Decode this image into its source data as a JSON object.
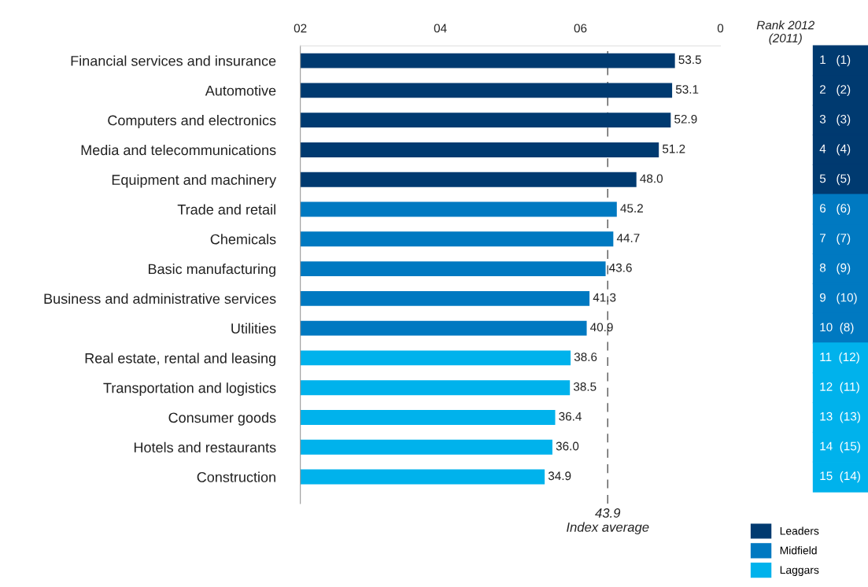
{
  "chart_data": {
    "type": "bar",
    "orientation": "horizontal",
    "categories": [
      "Financial services and insurance",
      "Automotive",
      "Computers and electronics",
      "Media and telecommunications",
      "Equipment and machinery",
      "Trade and retail",
      "Chemicals",
      "Basic manufacturing",
      "Business and administrative services",
      "Utilities",
      "Real estate, rental and leasing",
      "Transportation and logistics",
      "Consumer goods",
      "Hotels and restaurants",
      "Construction"
    ],
    "series": [
      {
        "name": "Leaders",
        "color": "#003a70",
        "values": [
          53.5,
          53.1,
          52.9,
          51.2,
          48.0,
          null,
          null,
          null,
          null,
          null,
          null,
          null,
          null,
          null,
          null
        ],
        "value_labels": [
          "53.5",
          "53.1",
          "52.9",
          "51.2",
          "48.0",
          null,
          null,
          null,
          null,
          null,
          null,
          null,
          null,
          null,
          null
        ]
      },
      {
        "name": "Midfield",
        "color": "#0079c1",
        "values": [
          null,
          null,
          null,
          null,
          null,
          45.2,
          44.7,
          43.6,
          41.3,
          40.9,
          null,
          null,
          null,
          null,
          null
        ],
        "value_labels": [
          null,
          null,
          null,
          null,
          null,
          "45.2",
          "44.7",
          "43.6",
          "41.3",
          "40.9",
          null,
          null,
          null,
          null,
          null
        ]
      },
      {
        "name": "Laggars",
        "color": "#00b2ec",
        "values": [
          null,
          null,
          null,
          null,
          null,
          null,
          null,
          null,
          null,
          null,
          38.6,
          38.5,
          36.4,
          36.0,
          34.9
        ],
        "value_labels": [
          null,
          null,
          null,
          null,
          null,
          null,
          null,
          null,
          null,
          null,
          "38.6",
          "38.5",
          "36.4",
          "36.0",
          "34.9"
        ]
      }
    ],
    "xlim": [
      0,
      60
    ],
    "ref_lines": [
      {
        "axis": "x",
        "value": 43.9,
        "label": "43.9\nIndex average",
        "line_style": "dashed",
        "color": "#555555"
      }
    ],
    "legend": "bottom right",
    "annotations": [
      "Rank 2012\n(2011)",
      "1   (1)",
      "2   (2)",
      "3   (3)",
      "4   (4)",
      "5   (5)",
      "6   (6)",
      "7   (7)",
      "8   (9)",
      "9   (10)",
      "10  (8)",
      "11  (12)",
      "12  (11)",
      "13  (13)",
      "14  (15)",
      "15  (14)",
      "02",
      "04",
      "06",
      "0"
    ]
  }
}
